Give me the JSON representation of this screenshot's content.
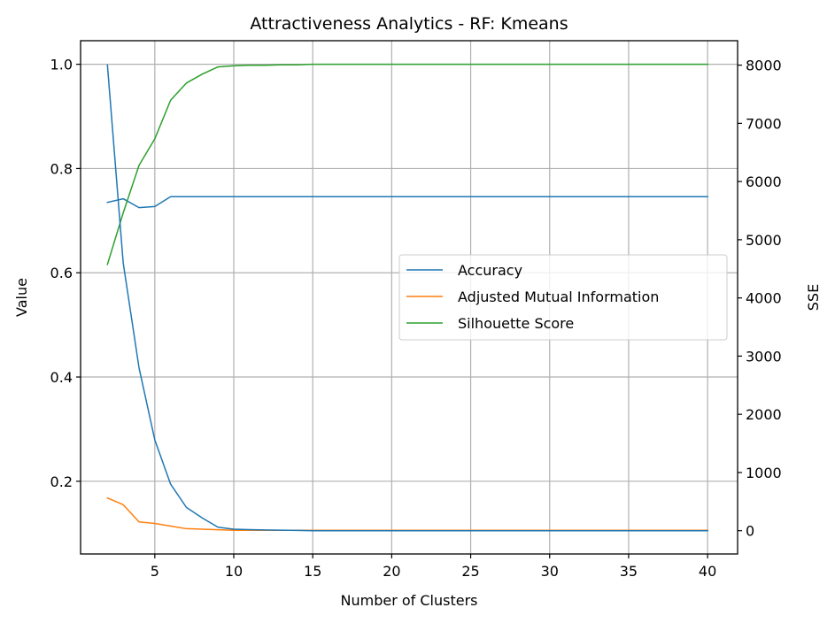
{
  "chart_data": {
    "type": "line",
    "title": "Attractiveness Analytics - RF: Kmeans",
    "xlabel": "Number of Clusters",
    "ylabel": "Value",
    "y2label": "SSE",
    "grid": true,
    "legend_position": "center-right",
    "xlim": [
      0.3,
      41.9
    ],
    "ylim": [
      0.0605,
      1.0452
    ],
    "y2lim": [
      -400,
      8420
    ],
    "xticks": [
      5,
      10,
      15,
      20,
      25,
      30,
      35,
      40
    ],
    "yticks": [
      0.2,
      0.4,
      0.6,
      0.8,
      1.0
    ],
    "y2ticks": [
      0,
      1000,
      2000,
      3000,
      4000,
      5000,
      6000,
      7000,
      8000
    ],
    "series": [
      {
        "name": "Accuracy",
        "axis": "left",
        "color": "#1f77b4",
        "x": [
          2,
          3,
          4,
          5,
          6,
          7,
          8,
          9,
          10,
          11,
          12,
          13,
          14,
          15,
          16,
          17,
          18,
          19,
          20,
          21,
          22,
          23,
          24,
          25,
          26,
          27,
          28,
          29,
          30,
          31,
          32,
          33,
          34,
          35,
          36,
          37,
          38,
          39,
          40
        ],
        "values": [
          0.735,
          0.742,
          0.725,
          0.727,
          0.746,
          0.746,
          0.746,
          0.746,
          0.746,
          0.746,
          0.746,
          0.746,
          0.746,
          0.746,
          0.746,
          0.746,
          0.746,
          0.746,
          0.746,
          0.746,
          0.746,
          0.746,
          0.746,
          0.746,
          0.746,
          0.746,
          0.746,
          0.746,
          0.746,
          0.746,
          0.746,
          0.746,
          0.746,
          0.746,
          0.746,
          0.746,
          0.746,
          0.746,
          0.746
        ]
      },
      {
        "name": "Adjusted Mutual Information",
        "axis": "left",
        "color": "#ff7f0e",
        "x": [
          2,
          3,
          4,
          5,
          6,
          7,
          8,
          9,
          10,
          11,
          12,
          13,
          14,
          15,
          16,
          17,
          18,
          19,
          20,
          21,
          22,
          23,
          24,
          25,
          26,
          27,
          28,
          29,
          30,
          31,
          32,
          33,
          34,
          35,
          36,
          37,
          38,
          39,
          40
        ],
        "values": [
          0.168,
          0.155,
          0.122,
          0.119,
          0.114,
          0.109,
          0.108,
          0.107,
          0.106,
          0.106,
          0.106,
          0.106,
          0.106,
          0.106,
          0.106,
          0.106,
          0.106,
          0.106,
          0.106,
          0.106,
          0.106,
          0.106,
          0.106,
          0.106,
          0.106,
          0.106,
          0.106,
          0.106,
          0.106,
          0.106,
          0.106,
          0.106,
          0.106,
          0.106,
          0.106,
          0.106,
          0.106,
          0.106,
          0.106
        ]
      },
      {
        "name": "Silhouette Score",
        "axis": "left",
        "color": "#2ca02c",
        "x": [
          2,
          3,
          4,
          5,
          6,
          7,
          8,
          9,
          10,
          11,
          12,
          13,
          14,
          15,
          16,
          17,
          18,
          19,
          20,
          21,
          22,
          23,
          24,
          25,
          26,
          27,
          28,
          29,
          30,
          31,
          32,
          33,
          34,
          35,
          36,
          37,
          38,
          39,
          40
        ],
        "values": [
          0.616,
          0.715,
          0.806,
          0.857,
          0.931,
          0.964,
          0.981,
          0.995,
          0.997,
          0.998,
          0.998,
          0.999,
          0.999,
          1.0,
          1.0,
          1.0,
          1.0,
          1.0,
          1.0,
          1.0,
          1.0,
          1.0,
          1.0,
          1.0,
          1.0,
          1.0,
          1.0,
          1.0,
          1.0,
          1.0,
          1.0,
          1.0,
          1.0,
          1.0,
          1.0,
          1.0,
          1.0,
          1.0,
          1.0
        ]
      },
      {
        "name": "",
        "axis": "right",
        "color": "#1f77b4",
        "x": [
          2,
          3,
          4,
          5,
          6,
          7,
          8,
          9,
          10,
          11,
          12,
          13,
          14,
          15,
          16,
          17,
          18,
          19,
          20,
          21,
          22,
          23,
          24,
          25,
          26,
          27,
          28,
          29,
          30,
          31,
          32,
          33,
          34,
          35,
          36,
          37,
          38,
          39,
          40
        ],
        "values": [
          8000,
          4600,
          2800,
          1560,
          800,
          400,
          220,
          60,
          25,
          18,
          12,
          8,
          4,
          0,
          0,
          0,
          0,
          0,
          0,
          0,
          0,
          0,
          0,
          0,
          0,
          0,
          0,
          0,
          0,
          0,
          0,
          0,
          0,
          0,
          0,
          0,
          0,
          0,
          0
        ]
      }
    ]
  }
}
